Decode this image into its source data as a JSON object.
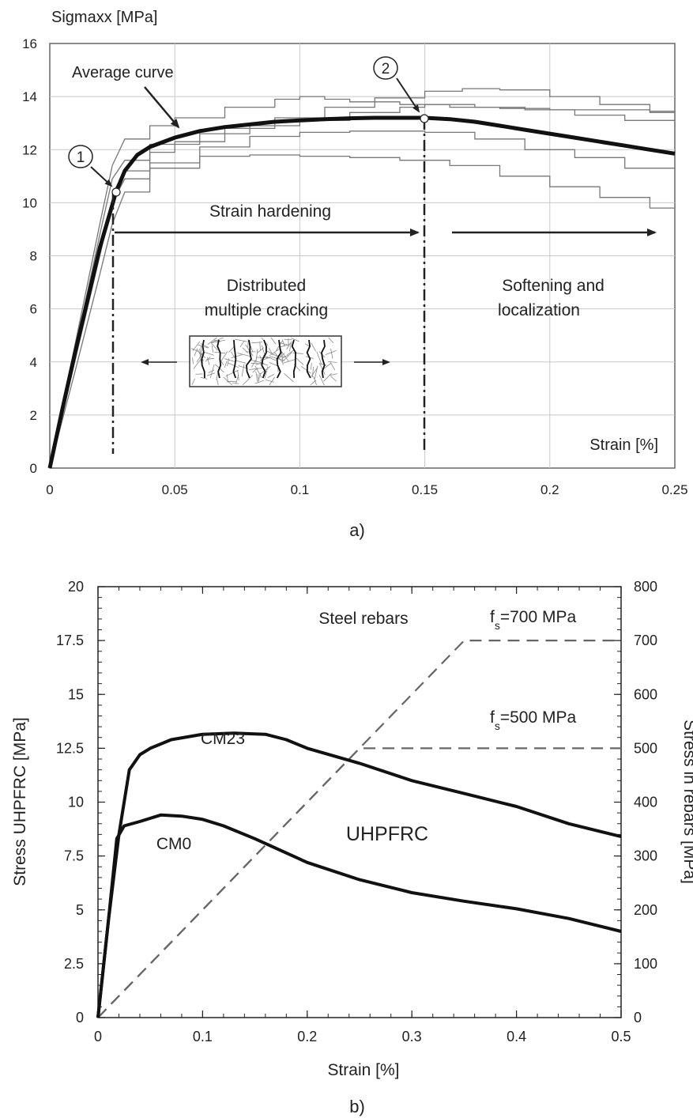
{
  "chart_data": [
    {
      "type": "line",
      "panel_label": "a)",
      "ylabel": "Sigmaxx [MPa]",
      "xlabel": "Strain [%]",
      "xlim": [
        0,
        0.25
      ],
      "ylim": [
        0,
        16
      ],
      "x_ticks": [
        "0",
        "0.05",
        "0.1",
        "0.15",
        "0.2",
        "0.25"
      ],
      "y_ticks": [
        "0",
        "2",
        "4",
        "6",
        "8",
        "10",
        "12",
        "14",
        "16"
      ],
      "grid": true,
      "annotations": {
        "average_curve": "Average curve",
        "point_1": "1",
        "point_2": "2",
        "strain_hardening": "Strain hardening",
        "distributed_line1": "Distributed",
        "distributed_line2": "multiple cracking",
        "softening_line1": "Softening and",
        "softening_line2": "localization"
      },
      "key_points": [
        {
          "label": "1",
          "x": 0.0265,
          "y": 10.4
        },
        {
          "label": "2",
          "x": 0.15,
          "y": 13.2
        }
      ],
      "series": [
        {
          "role": "average",
          "x": [
            0,
            0.005,
            0.01,
            0.015,
            0.02,
            0.0265,
            0.03,
            0.035,
            0.04,
            0.05,
            0.06,
            0.07,
            0.08,
            0.09,
            0.1,
            0.11,
            0.12,
            0.13,
            0.14,
            0.15,
            0.16,
            0.17,
            0.18,
            0.19,
            0.2,
            0.21,
            0.22,
            0.23,
            0.24,
            0.25
          ],
          "y": [
            0,
            2.2,
            4.3,
            6.3,
            8.3,
            10.4,
            11.2,
            11.8,
            12.1,
            12.45,
            12.7,
            12.85,
            12.95,
            13.05,
            13.1,
            13.15,
            13.18,
            13.2,
            13.2,
            13.2,
            13.15,
            13.05,
            12.9,
            12.75,
            12.6,
            12.45,
            12.3,
            12.15,
            12.0,
            11.85
          ]
        },
        {
          "role": "specimen",
          "x": [
            0,
            0.01,
            0.02,
            0.025,
            0.03,
            0.04,
            0.05,
            0.07,
            0.09,
            0.1,
            0.11,
            0.12,
            0.14,
            0.16,
            0.18,
            0.2,
            0.22,
            0.24,
            0.25
          ],
          "y": [
            0,
            4.6,
            9.2,
            11.4,
            12.4,
            12.9,
            13.2,
            13.6,
            13.9,
            14.0,
            13.9,
            13.8,
            13.7,
            13.6,
            13.55,
            13.5,
            13.5,
            13.45,
            13.45
          ]
        },
        {
          "role": "specimen",
          "x": [
            0,
            0.01,
            0.02,
            0.026,
            0.03,
            0.04,
            0.05,
            0.07,
            0.09,
            0.11,
            0.13,
            0.15,
            0.165,
            0.18,
            0.2,
            0.22,
            0.24,
            0.25
          ],
          "y": [
            0,
            4.1,
            8.2,
            10.5,
            11.2,
            11.9,
            12.3,
            12.8,
            13.2,
            13.6,
            13.95,
            14.2,
            14.3,
            14.25,
            14.0,
            13.7,
            13.4,
            13.3
          ]
        },
        {
          "role": "specimen",
          "x": [
            0,
            0.01,
            0.02,
            0.025,
            0.03,
            0.04,
            0.06,
            0.08,
            0.1,
            0.12,
            0.14,
            0.15,
            0.17,
            0.19,
            0.21,
            0.23,
            0.25
          ],
          "y": [
            0,
            4.4,
            8.8,
            10.9,
            11.6,
            12.2,
            12.6,
            12.9,
            13.1,
            13.4,
            13.6,
            13.7,
            13.6,
            13.5,
            13.3,
            13.1,
            12.9
          ]
        },
        {
          "role": "specimen",
          "x": [
            0,
            0.01,
            0.02,
            0.025,
            0.03,
            0.04,
            0.06,
            0.08,
            0.1,
            0.12,
            0.14,
            0.15,
            0.17,
            0.19,
            0.21,
            0.23,
            0.25
          ],
          "y": [
            0,
            4.0,
            8.0,
            10.0,
            10.9,
            11.5,
            12.1,
            12.5,
            12.65,
            12.7,
            12.7,
            12.65,
            12.4,
            12.0,
            11.7,
            11.3,
            10.9
          ]
        },
        {
          "role": "specimen",
          "x": [
            0,
            0.01,
            0.02,
            0.025,
            0.03,
            0.04,
            0.06,
            0.08,
            0.1,
            0.12,
            0.14,
            0.16,
            0.18,
            0.2,
            0.22,
            0.24,
            0.25
          ],
          "y": [
            0,
            3.6,
            7.3,
            9.2,
            10.4,
            11.3,
            11.75,
            11.8,
            11.75,
            11.7,
            11.6,
            11.4,
            11.0,
            10.6,
            10.2,
            9.8,
            9.6
          ]
        }
      ]
    },
    {
      "type": "line",
      "panel_label": "b)",
      "xlabel": "Strain [%]",
      "ylabel": "Stress UHPFRC [MPa]",
      "ylabel_right": "Stress in rebars [MPa]",
      "xlim": [
        0,
        0.5
      ],
      "ylim": [
        0,
        20
      ],
      "ylim_right": [
        0,
        800
      ],
      "x_ticks": [
        "0",
        "0.1",
        "0.2",
        "0.3",
        "0.4",
        "0.5"
      ],
      "y_ticks": [
        "0",
        "2.5",
        "5",
        "7.5",
        "10",
        "12.5",
        "15",
        "17.5",
        "20"
      ],
      "y_ticks_right": [
        "0",
        "100",
        "200",
        "300",
        "400",
        "500",
        "600",
        "700",
        "800"
      ],
      "grid": false,
      "annotations": {
        "steel_rebars": "Steel rebars",
        "fs700": "f",
        "fs700_sub": "s",
        "fs700_value": "=700 MPa",
        "fs500": "f",
        "fs500_sub": "s",
        "fs500_value": "=500 MPa",
        "uhpfrc": "UHPFRC"
      },
      "series": [
        {
          "name": "CM23",
          "x": [
            0,
            0.01,
            0.02,
            0.03,
            0.04,
            0.05,
            0.07,
            0.1,
            0.13,
            0.16,
            0.18,
            0.2,
            0.25,
            0.3,
            0.35,
            0.4,
            0.45,
            0.5
          ],
          "y": [
            0,
            4.5,
            8.5,
            11.5,
            12.2,
            12.5,
            12.9,
            13.15,
            13.2,
            13.15,
            12.9,
            12.5,
            11.8,
            11.0,
            10.4,
            9.8,
            9.0,
            8.4
          ]
        },
        {
          "name": "CM0",
          "x": [
            0,
            0.01,
            0.018,
            0.025,
            0.04,
            0.06,
            0.08,
            0.1,
            0.12,
            0.15,
            0.2,
            0.25,
            0.3,
            0.35,
            0.4,
            0.45,
            0.5
          ],
          "y": [
            0,
            4.5,
            8.3,
            8.9,
            9.1,
            9.4,
            9.35,
            9.2,
            8.9,
            8.3,
            7.2,
            6.4,
            5.8,
            5.4,
            5.05,
            4.6,
            4.0
          ]
        },
        {
          "role": "rebar",
          "axis": "right",
          "style": "dashed",
          "x": [
            0,
            0.25,
            0.5
          ],
          "y": [
            0,
            500,
            500
          ]
        },
        {
          "role": "rebar",
          "axis": "right",
          "style": "dashed",
          "x": [
            0,
            0.35,
            0.5
          ],
          "y": [
            0,
            700,
            700
          ]
        }
      ]
    }
  ]
}
